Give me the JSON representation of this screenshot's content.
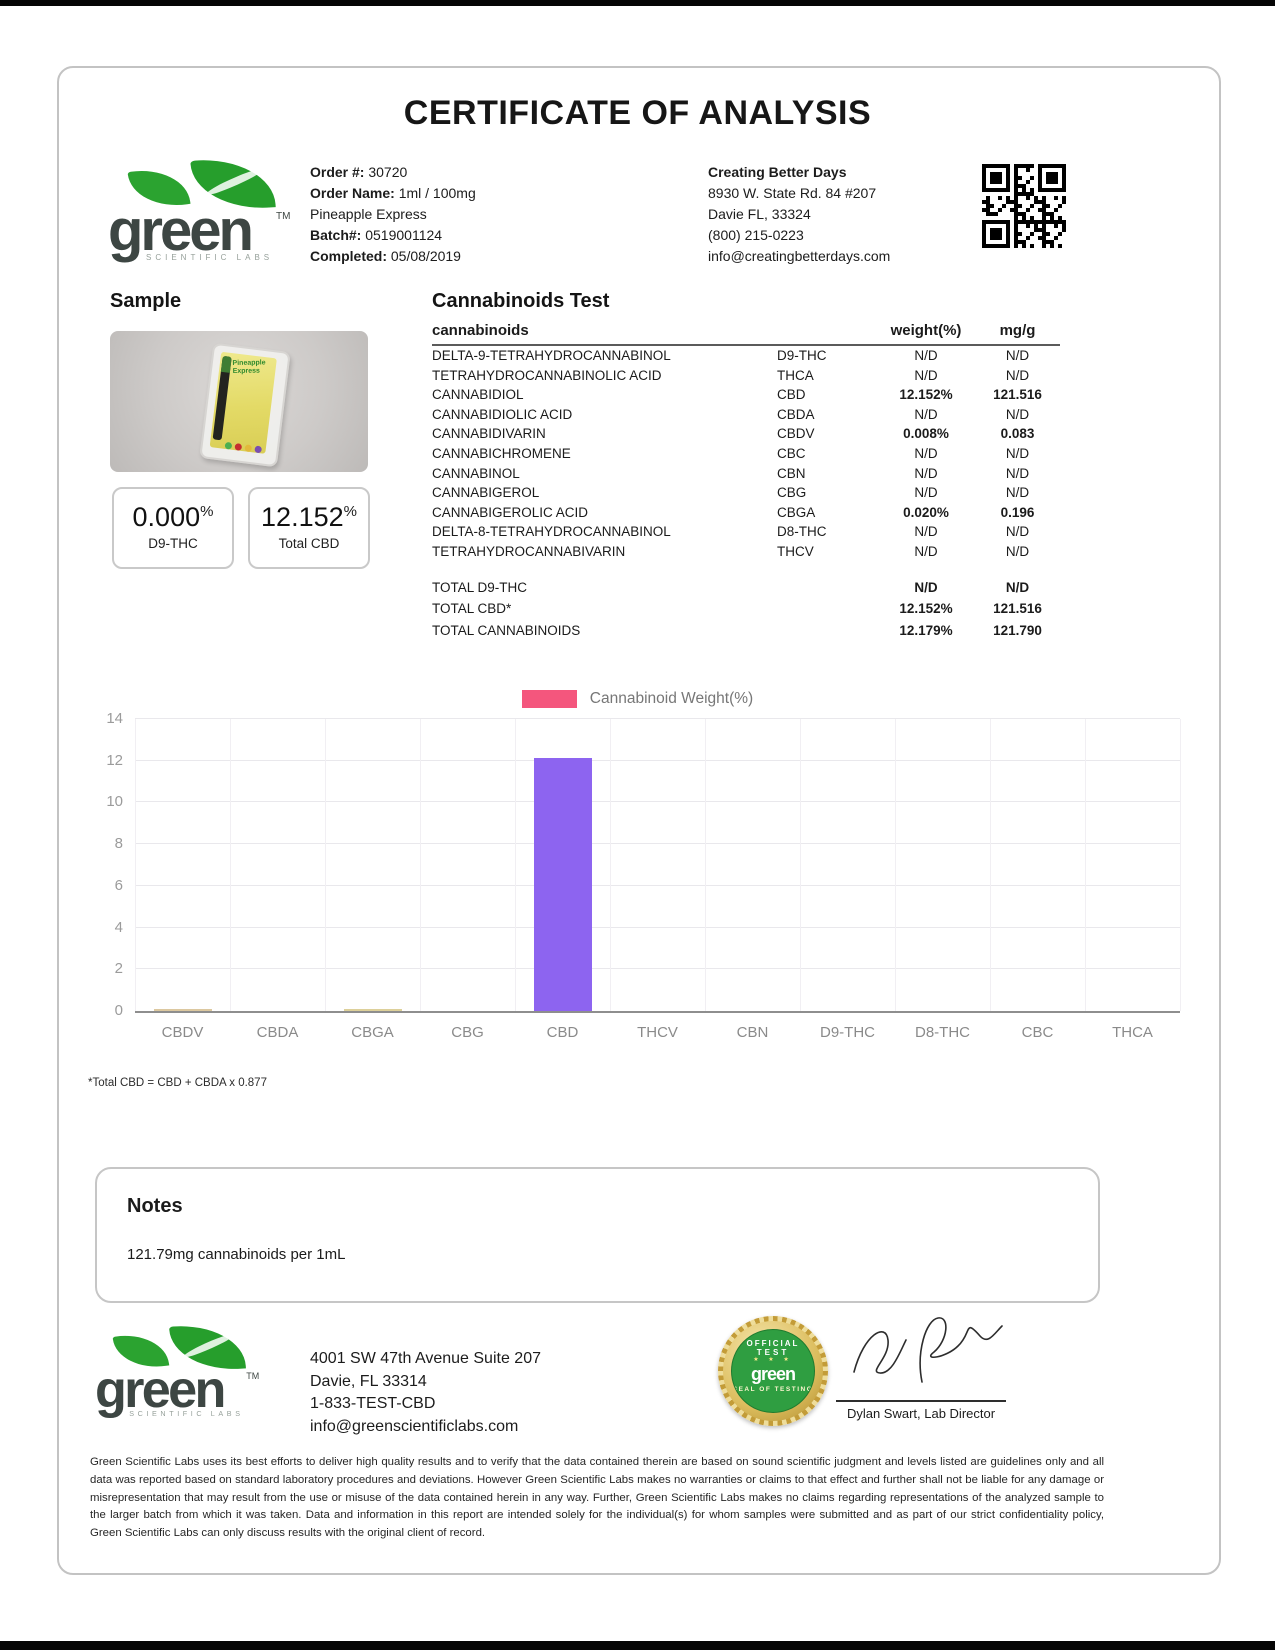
{
  "page_title": "CERTIFICATE OF ANALYSIS",
  "brand": {
    "word": "green",
    "sub": "SCIENTIFIC LABS",
    "tm": "TM"
  },
  "header": {
    "order_lines": [
      {
        "label": "Order #:",
        "value": "30720"
      },
      {
        "label": "Order Name:",
        "value": "1ml / 100mg"
      },
      {
        "label": "",
        "value": "Pineapple Express"
      },
      {
        "label": "Batch#:",
        "value": "0519001124"
      },
      {
        "label": "Completed:",
        "value": "05/08/2019"
      }
    ],
    "client_lines": [
      "Creating Better Days",
      "8930 W. State Rd. 84 #207",
      "Davie FL, 33324",
      "(800) 215-0223",
      "info@creatingbetterdays.com"
    ]
  },
  "sample": {
    "heading": "Sample",
    "product_text": "Pineapple Express",
    "results": [
      {
        "value": "0.000",
        "unit": "%",
        "label": "D9-THC"
      },
      {
        "value": "12.152",
        "unit": "%",
        "label": "Total CBD"
      }
    ]
  },
  "cannabinoids_test": {
    "heading": "Cannabinoids Test",
    "columns": {
      "name": "cannabinoids",
      "weight": "weight(%)",
      "mgg": "mg/g"
    },
    "rows": [
      {
        "name": "DELTA-9-TETRAHYDROCANNABINOL",
        "abbr": "D9-THC",
        "weight": "N/D",
        "mgg": "N/D",
        "bold": false
      },
      {
        "name": "TETRAHYDROCANNABINOLIC ACID",
        "abbr": "THCA",
        "weight": "N/D",
        "mgg": "N/D",
        "bold": false
      },
      {
        "name": "CANNABIDIOL",
        "abbr": "CBD",
        "weight": "12.152%",
        "mgg": "121.516",
        "bold": true
      },
      {
        "name": "CANNABIDIOLIC ACID",
        "abbr": "CBDA",
        "weight": "N/D",
        "mgg": "N/D",
        "bold": false
      },
      {
        "name": "CANNABIDIVARIN",
        "abbr": "CBDV",
        "weight": "0.008%",
        "mgg": "0.083",
        "bold": true
      },
      {
        "name": "CANNABICHROMENE",
        "abbr": "CBC",
        "weight": "N/D",
        "mgg": "N/D",
        "bold": false
      },
      {
        "name": "CANNABINOL",
        "abbr": "CBN",
        "weight": "N/D",
        "mgg": "N/D",
        "bold": false
      },
      {
        "name": "CANNABIGEROL",
        "abbr": "CBG",
        "weight": "N/D",
        "mgg": "N/D",
        "bold": false
      },
      {
        "name": "CANNABIGEROLIC ACID",
        "abbr": "CBGA",
        "weight": "0.020%",
        "mgg": "0.196",
        "bold": true
      },
      {
        "name": "DELTA-8-TETRAHYDROCANNABINOL",
        "abbr": "D8-THC",
        "weight": "N/D",
        "mgg": "N/D",
        "bold": false
      },
      {
        "name": "TETRAHYDROCANNABIVARIN",
        "abbr": "THCV",
        "weight": "N/D",
        "mgg": "N/D",
        "bold": false
      }
    ],
    "totals": [
      {
        "name": "TOTAL D9-THC",
        "weight": "N/D",
        "mgg": "N/D"
      },
      {
        "name": "TOTAL CBD*",
        "weight": "12.152%",
        "mgg": "121.516"
      },
      {
        "name": "TOTAL CANNABINOIDS",
        "weight": "12.179%",
        "mgg": "121.790"
      }
    ],
    "footnote": "*Total CBD = CBD + CBDA x 0.877"
  },
  "chart_data": {
    "type": "bar",
    "legend": "Cannabinoid Weight(%)",
    "legend_position": "top-center",
    "legend_color": "#f4567d",
    "categories": [
      "CBDV",
      "CBDA",
      "CBGA",
      "CBG",
      "CBD",
      "THCV",
      "CBN",
      "D9-THC",
      "D8-THC",
      "CBC",
      "THCA"
    ],
    "values": [
      0.008,
      0,
      0.02,
      0,
      12.152,
      0,
      0,
      0,
      0,
      0,
      0
    ],
    "bar_colors": [
      "#dcc8a0",
      null,
      "#ddd09a",
      null,
      "#8d64f0",
      null,
      null,
      null,
      null,
      null,
      null
    ],
    "title": "",
    "xlabel": "",
    "ylabel": "",
    "ylim": [
      0,
      14
    ],
    "yticks": [
      0,
      2,
      4,
      6,
      8,
      10,
      12,
      14
    ],
    "grid": true
  },
  "notes": {
    "heading": "Notes",
    "text": "121.79mg cannabinoids per 1mL"
  },
  "footer": {
    "address_lines": [
      "4001 SW 47th Avenue Suite 207",
      "Davie, FL 33314",
      "1-833-TEST-CBD",
      "info@greenscientificlabs.com"
    ],
    "seal": {
      "line1": "OFFICIAL",
      "line2": "TEST",
      "stars": "★ ★ ★",
      "word": "green",
      "line3": "SEAL OF TESTING"
    },
    "signature_name": "Dylan Swart, Lab Director",
    "disclaimer": "Green Scientific Labs uses its best efforts to deliver high quality results and to verify that the data contained therein are based on sound scientific judgment and levels listed are guidelines only and all data was reported based on standard laboratory procedures and deviations. However Green Scientific Labs makes no warranties or claims to that effect and further shall not be liable for any damage or misrepresentation that may result from the use or misuse of the data contained herein in any way. Further, Green Scientific Labs makes no claims regarding representations of the analyzed sample to the larger batch from which it was taken. Data and information in this report are intended solely for the individual(s) for whom samples were submitted and as part of our strict confidentiality policy, Green Scientific Labs can only discuss results with the original client of record."
  }
}
